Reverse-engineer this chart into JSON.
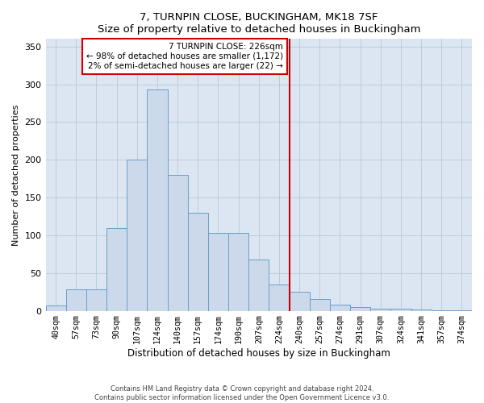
{
  "title": "7, TURNPIN CLOSE, BUCKINGHAM, MK18 7SF",
  "subtitle": "Size of property relative to detached houses in Buckingham",
  "xlabel": "Distribution of detached houses by size in Buckingham",
  "ylabel": "Number of detached properties",
  "categories": [
    "40sqm",
    "57sqm",
    "73sqm",
    "90sqm",
    "107sqm",
    "124sqm",
    "140sqm",
    "157sqm",
    "174sqm",
    "190sqm",
    "207sqm",
    "224sqm",
    "240sqm",
    "257sqm",
    "274sqm",
    "291sqm",
    "307sqm",
    "324sqm",
    "341sqm",
    "357sqm",
    "374sqm"
  ],
  "values": [
    7,
    28,
    28,
    110,
    200,
    293,
    180,
    130,
    103,
    103,
    68,
    35,
    25,
    16,
    8,
    5,
    3,
    3,
    2,
    1,
    1
  ],
  "bar_color": "#ccd9ea",
  "bar_edge_color": "#6b9fc7",
  "property_line_index": 11.5,
  "property_line_color": "#cc0000",
  "annotation_text": "7 TURNPIN CLOSE: 226sqm\n← 98% of detached houses are smaller (1,172)\n2% of semi-detached houses are larger (22) →",
  "annotation_box_color": "#cc0000",
  "ylim": [
    0,
    360
  ],
  "yticks": [
    0,
    50,
    100,
    150,
    200,
    250,
    300,
    350
  ],
  "footer": "Contains HM Land Registry data © Crown copyright and database right 2024.\nContains public sector information licensed under the Open Government Licence v3.0.",
  "background_color": "#dce6f2"
}
